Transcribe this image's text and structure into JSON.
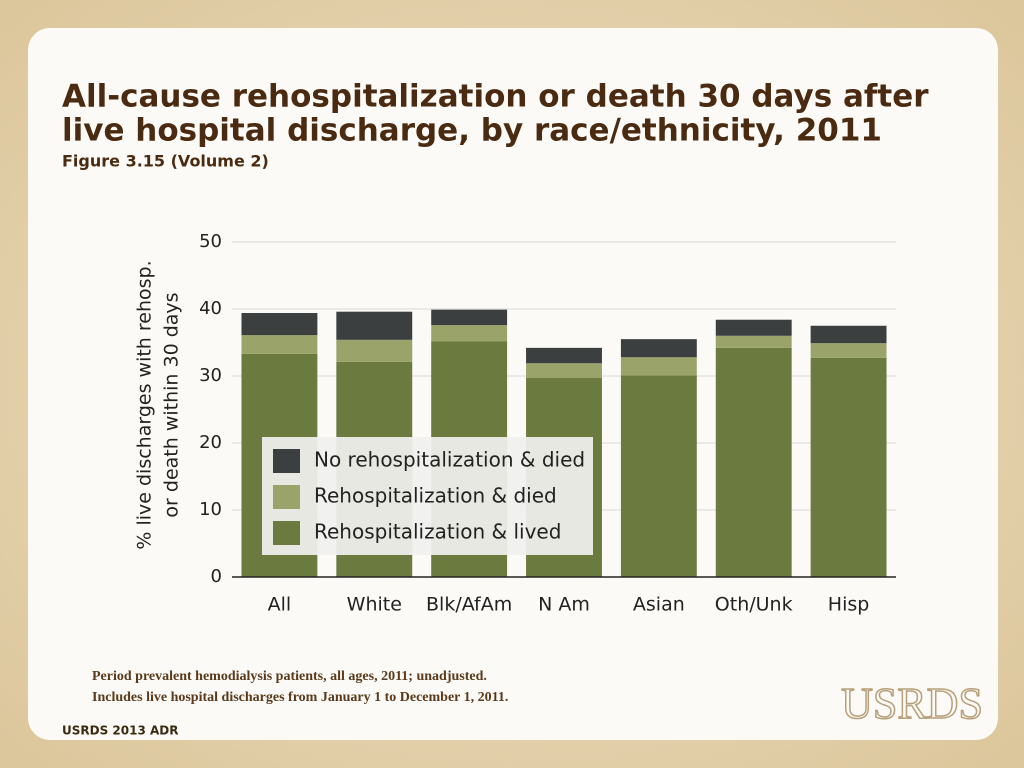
{
  "chart_data": {
    "type": "stacked_bar",
    "title": [
      "All-cause rehospitalization or death 30 days after",
      "live hospital discharge, by race/ethnicity, 2011"
    ],
    "subtitle": "Figure 3.15 (Volume 2)",
    "y_label": [
      "% live discharges with rehosp.",
      "or death within 30 days"
    ],
    "categories": [
      "All",
      "White",
      "Blk/AfAm",
      "N Am",
      "Asian",
      "Oth/Unk",
      "Hisp"
    ],
    "series": [
      {
        "name": "Rehospitalization & lived",
        "color": "#6b7a3e",
        "values": [
          33.3,
          32.1,
          35.2,
          29.7,
          30.1,
          34.2,
          32.7
        ]
      },
      {
        "name": "Rehospitalization & died",
        "color": "#9aa36a",
        "values": [
          2.8,
          3.3,
          2.4,
          2.2,
          2.7,
          1.8,
          2.2
        ]
      },
      {
        "name": "No rehospitalization & died",
        "color": "#3b3f3f",
        "values": [
          3.3,
          4.2,
          2.3,
          2.3,
          2.7,
          2.4,
          2.6
        ]
      }
    ],
    "ylim": [
      0,
      50
    ],
    "yticks": [
      0,
      10,
      20,
      30,
      40,
      50
    ],
    "grid": true
  },
  "notes": [
    "Period prevalent hemodialysis patients, all ages, 2011; unadjusted.",
    "Includes live hospital discharges from January 1 to December 1, 2011."
  ],
  "footer": "USRDS 2013 ADR",
  "logo": "USRDS"
}
